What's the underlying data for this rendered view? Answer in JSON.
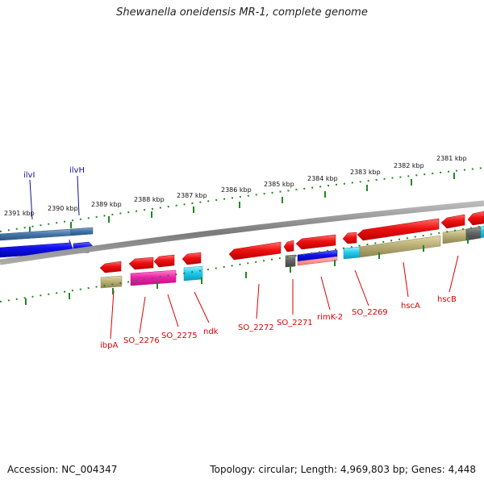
{
  "title": "Shewanella oneidensis MR-1, complete genome",
  "footer": {
    "accession": "Accession: NC_004347",
    "summary": "Topology: circular; Length: 4,969,803 bp; Genes: 4,448"
  },
  "kbp_labels": [
    "2391 kbp",
    "2390 kbp",
    "2389 kbp",
    "2388 kbp",
    "2387 kbp",
    "2386 kbp",
    "2385 kbp",
    "2384 kbp",
    "2383 kbp",
    "2382 kbp",
    "2381 kbp"
  ],
  "gene_labels": {
    "ilvI": "ilvI",
    "ilvH": "ilvH",
    "ibpA": "ibpA",
    "so2276": "SO_2276",
    "so2275": "SO_2275",
    "ndk": "ndk",
    "so2272": "SO_2272",
    "so2271": "SO_2271",
    "rimK2": "rimK-2",
    "so2269": "SO_2269",
    "hscA": "hscA",
    "hscB": "hscB"
  },
  "colors": {
    "cds_red": "#ee1111",
    "blue": "#1111ee",
    "steel_blue": "#4477aa",
    "magenta": "#ee22aa",
    "cyan": "#22ccee",
    "khaki": "#bbb077",
    "gray": "#666666",
    "backbone": "#8c8c8c",
    "tick_green": "#228822"
  }
}
